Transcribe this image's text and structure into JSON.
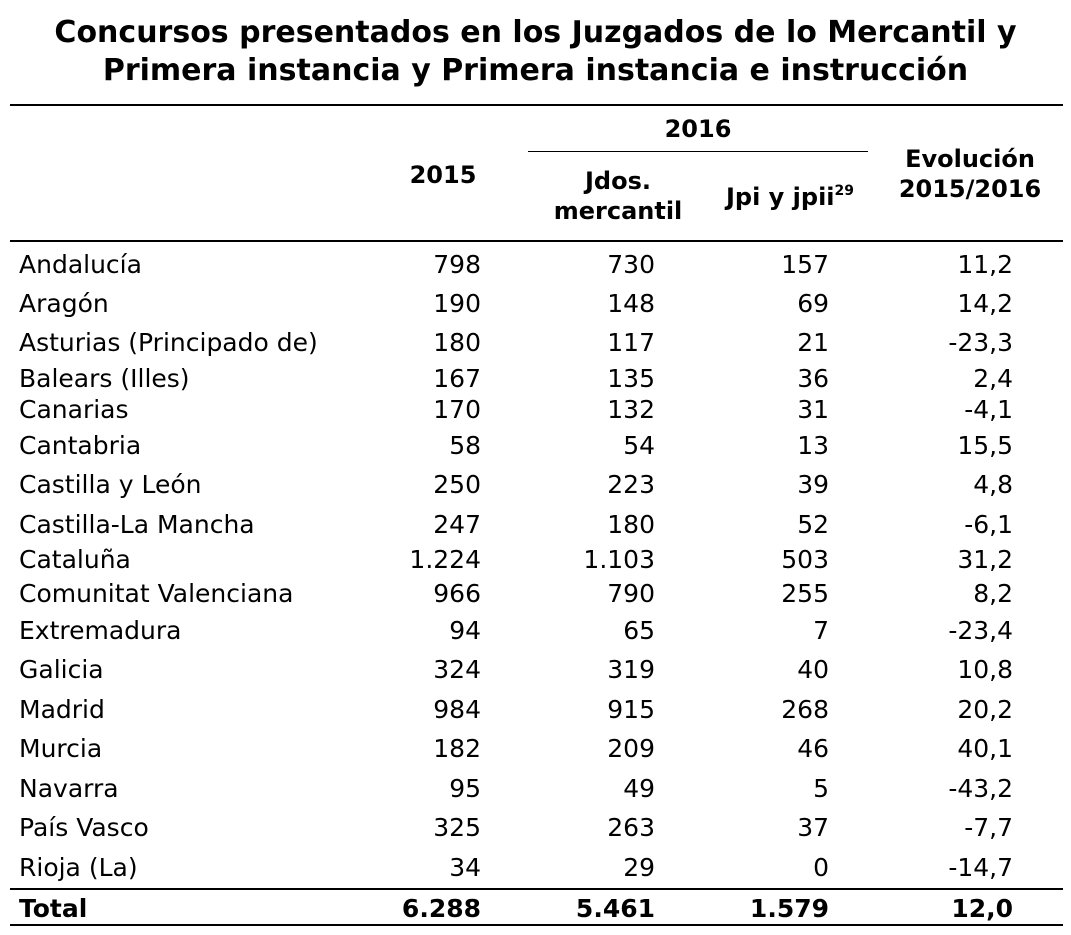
{
  "title_line1": "Concursos presentados en los Juzgados de lo Mercantil y",
  "title_line2": "Primera instancia y Primera instancia e instrucción",
  "headers": {
    "y2015": "2015",
    "y2016": "2016",
    "jdos_line1": "Jdos.",
    "jdos_line2": "mercantil",
    "jpi": "Jpi y jpii",
    "jpi_note": "29",
    "evol_line1": "Evolución",
    "evol_line2": "2015/2016"
  },
  "rows": [
    {
      "name": "Andalucía",
      "v2015": "798",
      "jdos": "730",
      "jpi": "157",
      "evol": "11,2"
    },
    {
      "name": "Aragón",
      "v2015": "190",
      "jdos": "148",
      "jpi": "69",
      "evol": "14,2"
    },
    {
      "name": "Asturias (Principado de)",
      "v2015": "180",
      "jdos": "117",
      "jpi": "21",
      "evol": "-23,3"
    },
    {
      "name": "Balears (Illes)",
      "v2015": "167",
      "jdos": "135",
      "jpi": "36",
      "evol": "2,4"
    },
    {
      "name": "Canarias",
      "v2015": "170",
      "jdos": "132",
      "jpi": "31",
      "evol": "-4,1"
    },
    {
      "name": "Cantabria",
      "v2015": "58",
      "jdos": "54",
      "jpi": "13",
      "evol": "15,5"
    },
    {
      "name": "Castilla y León",
      "v2015": "250",
      "jdos": "223",
      "jpi": "39",
      "evol": "4,8"
    },
    {
      "name": "Castilla-La Mancha",
      "v2015": "247",
      "jdos": "180",
      "jpi": "52",
      "evol": "-6,1"
    },
    {
      "name": "Cataluña",
      "v2015": "1.224",
      "jdos": "1.103",
      "jpi": "503",
      "evol": "31,2"
    },
    {
      "name": "Comunitat Valenciana",
      "v2015": "966",
      "jdos": "790",
      "jpi": "255",
      "evol": "8,2"
    },
    {
      "name": "Extremadura",
      "v2015": "94",
      "jdos": "65",
      "jpi": "7",
      "evol": "-23,4"
    },
    {
      "name": "Galicia",
      "v2015": "324",
      "jdos": "319",
      "jpi": "40",
      "evol": "10,8"
    },
    {
      "name": "Madrid",
      "v2015": "984",
      "jdos": "915",
      "jpi": "268",
      "evol": "20,2"
    },
    {
      "name": "Murcia",
      "v2015": "182",
      "jdos": "209",
      "jpi": "46",
      "evol": "40,1"
    },
    {
      "name": "Navarra",
      "v2015": "95",
      "jdos": "49",
      "jpi": "5",
      "evol": "-43,2"
    },
    {
      "name": "País Vasco",
      "v2015": "325",
      "jdos": "263",
      "jpi": "37",
      "evol": "-7,7"
    },
    {
      "name": "Rioja (La)",
      "v2015": "34",
      "jdos": "29",
      "jpi": "0",
      "evol": "-14,7"
    }
  ],
  "total": {
    "name": "Total",
    "v2015": "6.288",
    "jdos": "5.461",
    "jpi": "1.579",
    "evol": "12,0"
  }
}
